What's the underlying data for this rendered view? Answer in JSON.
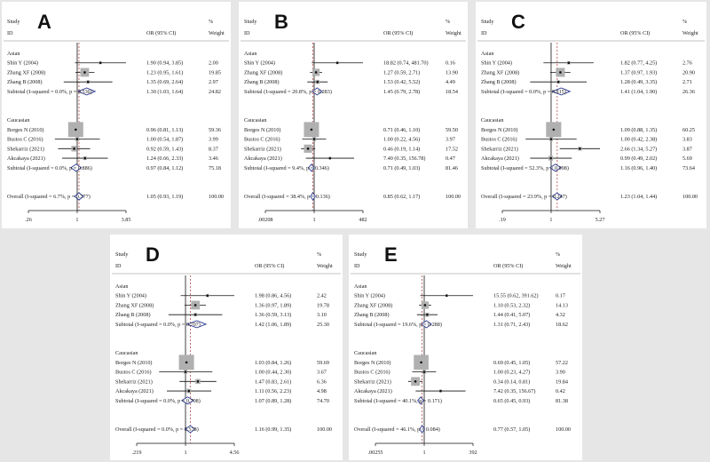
{
  "headers": {
    "study": "Study",
    "id": "ID",
    "or": "OR (95% CI)",
    "pct": "%",
    "weight": "Weight"
  },
  "chart_data": [
    {
      "type": "forest",
      "letter": "A",
      "scale": "log",
      "ticks": [
        {
          "v": 0.26,
          "label": ".26"
        },
        {
          "v": 1,
          "label": "1"
        },
        {
          "v": 3.85,
          "label": "3.85"
        }
      ],
      "xrange": [
        0.26,
        3.85
      ],
      "overall_or": 1.05,
      "groups": [
        {
          "name": "Asian",
          "studies": [
            {
              "label": "Shin Y (2004)",
              "or": 1.9,
              "lo": 0.94,
              "hi": 3.85,
              "text": "1.90 (0.94, 3.85)",
              "weight": "2.00",
              "w": 2.0
            },
            {
              "label": "Zhang XF (2008)",
              "or": 1.23,
              "lo": 0.95,
              "hi": 1.61,
              "text": "1.23 (0.95, 1.61)",
              "weight": "19.85",
              "w": 19.85
            },
            {
              "label": "Zhang B (2008)",
              "or": 1.35,
              "lo": 0.69,
              "hi": 2.64,
              "text": "1.35 (0.69, 2.64)",
              "weight": "2.97",
              "w": 2.97
            }
          ],
          "subtotal": {
            "label": "Subtotal  (I-squared = 0.0%, p = 0.530)",
            "or": 1.3,
            "lo": 1.03,
            "hi": 1.64,
            "text": "1.30 (1.03, 1.64)",
            "weight": "24.82"
          }
        },
        {
          "name": "Caucasian",
          "studies": [
            {
              "label": "Borges N (2010)",
              "or": 0.96,
              "lo": 0.81,
              "hi": 1.13,
              "text": "0.96 (0.81, 1.13)",
              "weight": "59.36",
              "w": 59.36
            },
            {
              "label": "Bustos C (2016)",
              "or": 1.0,
              "lo": 0.54,
              "hi": 1.87,
              "text": "1.00 (0.54, 1.87)",
              "weight": "3.99",
              "w": 3.99
            },
            {
              "label": "Shekarriz (2021)",
              "or": 0.92,
              "lo": 0.59,
              "hi": 1.43,
              "text": "0.92 (0.59, 1.43)",
              "weight": "8.37",
              "w": 8.37
            },
            {
              "label": "Akcakaya (2021)",
              "or": 1.24,
              "lo": 0.66,
              "hi": 2.33,
              "text": "1.24 (0.66, 2.33)",
              "weight": "3.46",
              "w": 3.46
            }
          ],
          "subtotal": {
            "label": "Subtotal  (I-squared = 0.0%, p = 0.886)",
            "or": 0.97,
            "lo": 0.84,
            "hi": 1.12,
            "text": "0.97 (0.84, 1.12)",
            "weight": "75.18"
          }
        }
      ],
      "overall": {
        "label": "Overall  (I-squared = 6.7%, p = 0.377)",
        "or": 1.05,
        "lo": 0.93,
        "hi": 1.19,
        "text": "1.05 (0.93, 1.19)",
        "weight": "100.00"
      }
    },
    {
      "type": "forest",
      "letter": "B",
      "scale": "log",
      "ticks": [
        {
          "v": 0.00208,
          "label": ".00208"
        },
        {
          "v": 1,
          "label": "1"
        },
        {
          "v": 482,
          "label": "482"
        }
      ],
      "xrange": [
        0.00208,
        482
      ],
      "overall_or": 0.85,
      "groups": [
        {
          "name": "Asian",
          "studies": [
            {
              "label": "Shin Y (2004)",
              "or": 18.82,
              "lo": 0.74,
              "hi": 481.7,
              "text": "18.82 (0.74, 481.70)",
              "weight": "0.16",
              "w": 0.16
            },
            {
              "label": "Zhang XF (2008)",
              "or": 1.27,
              "lo": 0.59,
              "hi": 2.71,
              "text": "1.27 (0.59, 2.71)",
              "weight": "13.90",
              "w": 13.9
            },
            {
              "label": "Zhang B (2008)",
              "or": 1.53,
              "lo": 0.42,
              "hi": 5.52,
              "text": "1.53 (0.42, 5.52)",
              "weight": "4.49",
              "w": 4.49
            }
          ],
          "subtotal": {
            "label": "Subtotal  (I-squared = 20.8%, p = 0.283)",
            "or": 1.45,
            "lo": 0.79,
            "hi": 2.78,
            "text": "1.45 (0.79, 2.78)",
            "weight": "18.54"
          }
        },
        {
          "name": "Caucasian",
          "studies": [
            {
              "label": "Borges N (2010)",
              "or": 0.71,
              "lo": 0.46,
              "hi": 1.1,
              "text": "0.71 (0.46, 1.10)",
              "weight": "59.50",
              "w": 59.5
            },
            {
              "label": "Bustos C (2016)",
              "or": 1.0,
              "lo": 0.22,
              "hi": 4.56,
              "text": "1.00 (0.22, 4.56)",
              "weight": "3.97",
              "w": 3.97
            },
            {
              "label": "Shekarriz (2021)",
              "or": 0.46,
              "lo": 0.19,
              "hi": 1.14,
              "text": "0.46 (0.19, 1.14)",
              "weight": "17.52",
              "w": 17.52
            },
            {
              "label": "Akcakaya (2021)",
              "or": 7.4,
              "lo": 0.35,
              "hi": 156.78,
              "text": "7.40 (0.35, 156.78)",
              "weight": "0.47",
              "w": 0.47
            }
          ],
          "subtotal": {
            "label": "Subtotal  (I-squared = 9.4%, p = 0.346)",
            "or": 0.71,
            "lo": 0.49,
            "hi": 1.03,
            "text": "0.71 (0.49, 1.03)",
            "weight": "81.46"
          }
        }
      ],
      "overall": {
        "label": "Overall  (I-squared = 38.4%, p = 0.136)",
        "or": 0.85,
        "lo": 0.62,
        "hi": 1.17,
        "text": "0.85 (0.62, 1.17)",
        "weight": "100.00"
      }
    },
    {
      "type": "forest",
      "letter": "C",
      "scale": "log",
      "ticks": [
        {
          "v": 0.19,
          "label": ".19"
        },
        {
          "v": 1,
          "label": "1"
        },
        {
          "v": 5.27,
          "label": "5.27"
        }
      ],
      "xrange": [
        0.19,
        5.27
      ],
      "overall_or": 1.23,
      "groups": [
        {
          "name": "Asian",
          "studies": [
            {
              "label": "Shin Y (2004)",
              "or": 1.82,
              "lo": 0.77,
              "hi": 4.25,
              "text": "1.82 (0.77, 4.25)",
              "weight": "2.76",
              "w": 2.76
            },
            {
              "label": "Zhang XF (2008)",
              "or": 1.37,
              "lo": 0.97,
              "hi": 1.93,
              "text": "1.37 (0.97, 1.93)",
              "weight": "20.90",
              "w": 20.9
            },
            {
              "label": "Zhang B (2008)",
              "or": 1.28,
              "lo": 0.49,
              "hi": 3.35,
              "text": "1.28 (0.49, 3.35)",
              "weight": "2.71",
              "w": 2.71
            }
          ],
          "subtotal": {
            "label": "Subtotal  (I-squared = 0.0%, p = 0.815)",
            "or": 1.41,
            "lo": 1.04,
            "hi": 1.9,
            "text": "1.41 (1.04, 1.90)",
            "weight": "26.36"
          }
        },
        {
          "name": "Caucasian",
          "studies": [
            {
              "label": "Borges N (2010)",
              "or": 1.09,
              "lo": 0.88,
              "hi": 1.35,
              "text": "1.09 (0.88, 1.35)",
              "weight": "60.25",
              "w": 60.25
            },
            {
              "label": "Bustos C (2016)",
              "or": 1.0,
              "lo": 0.42,
              "hi": 2.38,
              "text": "1.00 (0.42, 2.38)",
              "weight": "3.83",
              "w": 3.83
            },
            {
              "label": "Shekarriz (2021)",
              "or": 2.66,
              "lo": 1.34,
              "hi": 5.27,
              "text": "2.66 (1.34, 5.27)",
              "weight": "3.87",
              "w": 3.87
            },
            {
              "label": "Akcakaya (2021)",
              "or": 0.99,
              "lo": 0.49,
              "hi": 2.02,
              "text": "0.99 (0.49, 2.02)",
              "weight": "5.69",
              "w": 5.69
            }
          ],
          "subtotal": {
            "label": "Subtotal  (I-squared = 52.3%, p = 0.098)",
            "or": 1.16,
            "lo": 0.96,
            "hi": 1.4,
            "text": "1.16 (0.96, 1.40)",
            "weight": "73.64"
          }
        }
      ],
      "overall": {
        "label": "Overall  (I-squared = 23.9%, p = 0.247)",
        "or": 1.23,
        "lo": 1.04,
        "hi": 1.44,
        "text": "1.23 (1.04, 1.44)",
        "weight": "100.00"
      }
    },
    {
      "type": "forest",
      "letter": "D",
      "scale": "log",
      "ticks": [
        {
          "v": 0.219,
          "label": ".219"
        },
        {
          "v": 1,
          "label": "1"
        },
        {
          "v": 4.56,
          "label": "4.56"
        }
      ],
      "xrange": [
        0.219,
        4.56
      ],
      "overall_or": 1.16,
      "groups": [
        {
          "name": "Asian",
          "studies": [
            {
              "label": "Shin Y (2004)",
              "or": 1.98,
              "lo": 0.86,
              "hi": 4.56,
              "text": "1.98 (0.86, 4.56)",
              "weight": "2.42",
              "w": 2.42
            },
            {
              "label": "Zhang XF (2008)",
              "or": 1.36,
              "lo": 0.97,
              "hi": 1.89,
              "text": "1.36 (0.97, 1.89)",
              "weight": "19.78",
              "w": 19.78
            },
            {
              "label": "Zhang B (2008)",
              "or": 1.36,
              "lo": 0.59,
              "hi": 3.13,
              "text": "1.36 (0.59, 3.13)",
              "weight": "3.10",
              "w": 3.1
            }
          ],
          "subtotal": {
            "label": "Subtotal  (I-squared = 0.0%, p = 0.707)",
            "or": 1.42,
            "lo": 1.06,
            "hi": 1.89,
            "text": "1.42 (1.06, 1.89)",
            "weight": "25.30"
          }
        },
        {
          "name": "Caucasian",
          "studies": [
            {
              "label": "Borges N (2010)",
              "or": 1.03,
              "lo": 0.84,
              "hi": 1.26,
              "text": "1.03 (0.84, 1.26)",
              "weight": "59.69",
              "w": 59.69
            },
            {
              "label": "Bustos C (2016)",
              "or": 1.0,
              "lo": 0.44,
              "hi": 2.3,
              "text": "1.00 (0.44, 2.30)",
              "weight": "3.67",
              "w": 3.67
            },
            {
              "label": "Shekarriz (2021)",
              "or": 1.47,
              "lo": 0.83,
              "hi": 2.61,
              "text": "1.47 (0.83, 2.61)",
              "weight": "6.36",
              "w": 6.36
            },
            {
              "label": "Akcakaya (2021)",
              "or": 1.11,
              "lo": 0.56,
              "hi": 2.23,
              "text": "1.11 (0.56, 2.23)",
              "weight": "4.98",
              "w": 4.98
            }
          ],
          "subtotal": {
            "label": "Subtotal  (I-squared = 0.0%, p = 0.708)",
            "or": 1.07,
            "lo": 0.89,
            "hi": 1.28,
            "text": "1.07 (0.89, 1.28)",
            "weight": "74.70"
          }
        }
      ],
      "overall": {
        "label": "Overall  (I-squared = 0.0%, p = 0.578)",
        "or": 1.16,
        "lo": 0.99,
        "hi": 1.35,
        "text": "1.16 (0.99, 1.35)",
        "weight": "100.00"
      }
    },
    {
      "type": "forest",
      "letter": "E",
      "scale": "log",
      "ticks": [
        {
          "v": 0.00255,
          "label": ".00255"
        },
        {
          "v": 1,
          "label": "1"
        },
        {
          "v": 392,
          "label": "392"
        }
      ],
      "xrange": [
        0.00255,
        392
      ],
      "overall_or": 0.77,
      "groups": [
        {
          "name": "Asian",
          "studies": [
            {
              "label": "Shin Y (2004)",
              "or": 15.55,
              "lo": 0.62,
              "hi": 391.62,
              "text": "15.55 (0.62, 391.62)",
              "weight": "0.17",
              "w": 0.17
            },
            {
              "label": "Zhang XF (2008)",
              "or": 1.1,
              "lo": 0.53,
              "hi": 2.32,
              "text": "1.10 (0.53, 2.32)",
              "weight": "14.13",
              "w": 14.13
            },
            {
              "label": "Zhang B (2008)",
              "or": 1.44,
              "lo": 0.41,
              "hi": 5.07,
              "text": "1.44 (0.41, 5.07)",
              "weight": "4.32",
              "w": 4.32
            }
          ],
          "subtotal": {
            "label": "Subtotal  (I-squared = 19.6%, p = 0.288)",
            "or": 1.31,
            "lo": 0.71,
            "hi": 2.43,
            "text": "1.31 (0.71, 2.43)",
            "weight": "18.62"
          }
        },
        {
          "name": "Caucasian",
          "studies": [
            {
              "label": "Borges N (2010)",
              "or": 0.69,
              "lo": 0.45,
              "hi": 1.05,
              "text": "0.69 (0.45, 1.05)",
              "weight": "57.22",
              "w": 57.22
            },
            {
              "label": "Bustos C (2016)",
              "or": 1.0,
              "lo": 0.23,
              "hi": 4.27,
              "text": "1.00 (0.23, 4.27)",
              "weight": "3.90",
              "w": 3.9
            },
            {
              "label": "Shekarriz (2021)",
              "or": 0.34,
              "lo": 0.14,
              "hi": 0.81,
              "text": "0.34 (0.14, 0.81)",
              "weight": "19.84",
              "w": 19.84
            },
            {
              "label": "Akcakaya (2021)",
              "or": 7.42,
              "lo": 0.35,
              "hi": 156.67,
              "text": "7.42 (0.35, 156.67)",
              "weight": "0.42",
              "w": 0.42
            }
          ],
          "subtotal": {
            "label": "Subtotal  (I-squared = 40.1%, p = 0.171)",
            "or": 0.65,
            "lo": 0.45,
            "hi": 0.93,
            "text": "0.65 (0.45, 0.93)",
            "weight": "81.38"
          }
        }
      ],
      "overall": {
        "label": "Overall  (I-squared = 46.1%, p = 0.084)",
        "or": 0.77,
        "lo": 0.57,
        "hi": 1.05,
        "text": "0.77 (0.57, 1.05)",
        "weight": "100.00"
      }
    }
  ]
}
